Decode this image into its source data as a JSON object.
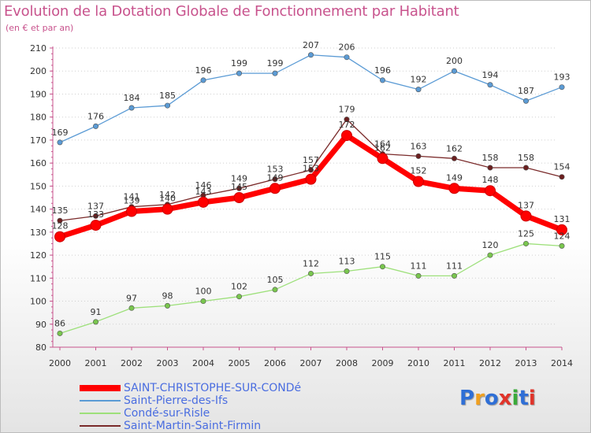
{
  "title": "Evolution de la Dotation Globale de Fonctionnement par Habitant",
  "subtitle": "(en € et par an)",
  "logo": {
    "text": "Proxiti",
    "letter_colors": [
      "#2f6fd6",
      "#f0a020",
      "#2f6fd6",
      "#e0342a",
      "#3aaa3a",
      "#2f6fd6",
      "#e0342a"
    ]
  },
  "chart_data": {
    "type": "line",
    "title": "Evolution de la Dotation Globale de Fonctionnement par Habitant",
    "subtitle": "(en € et par an)",
    "xlabel": "",
    "ylabel": "",
    "x": [
      2000,
      2001,
      2002,
      2003,
      2004,
      2005,
      2006,
      2007,
      2008,
      2009,
      2010,
      2011,
      2012,
      2013,
      2014
    ],
    "ylim": [
      80,
      210
    ],
    "yticks": [
      80,
      90,
      100,
      110,
      120,
      130,
      140,
      150,
      160,
      170,
      180,
      190,
      200,
      210
    ],
    "grid": "horizontal dotted",
    "legend_position": "bottom-left",
    "series": [
      {
        "name": "Saint-Pierre-des-Ifs",
        "color": "#5b9bd5",
        "marker": "#5b9bd5",
        "values": [
          169,
          176,
          184,
          185,
          196,
          199,
          199,
          207,
          206,
          196,
          192,
          200,
          194,
          187,
          193
        ]
      },
      {
        "name": "Condé-sur-Risle",
        "color": "#9de07a",
        "marker": "#79c64e",
        "values": [
          86,
          91,
          97,
          98,
          100,
          102,
          105,
          112,
          113,
          115,
          111,
          111,
          120,
          125,
          124
        ]
      },
      {
        "name": "Saint-Martin-Saint-Firmin",
        "color": "#7a2a2a",
        "marker": "#6b1f1f",
        "values": [
          135,
          137,
          141,
          142,
          146,
          149,
          153,
          157,
          179,
          164,
          163,
          162,
          158,
          158,
          154
        ]
      },
      {
        "name": "SAINT-CHRISTOPHE-SUR-CONDé",
        "color": "#ff0000",
        "marker": "#ff0000",
        "highlight": true,
        "values": [
          128,
          133,
          139,
          140,
          143,
          145,
          149,
          153,
          172,
          162,
          152,
          149,
          148,
          137,
          131
        ]
      }
    ],
    "legend_order": [
      "SAINT-CHRISTOPHE-SUR-CONDé",
      "Saint-Pierre-des-Ifs",
      "Condé-sur-Risle",
      "Saint-Martin-Saint-Firmin"
    ]
  }
}
